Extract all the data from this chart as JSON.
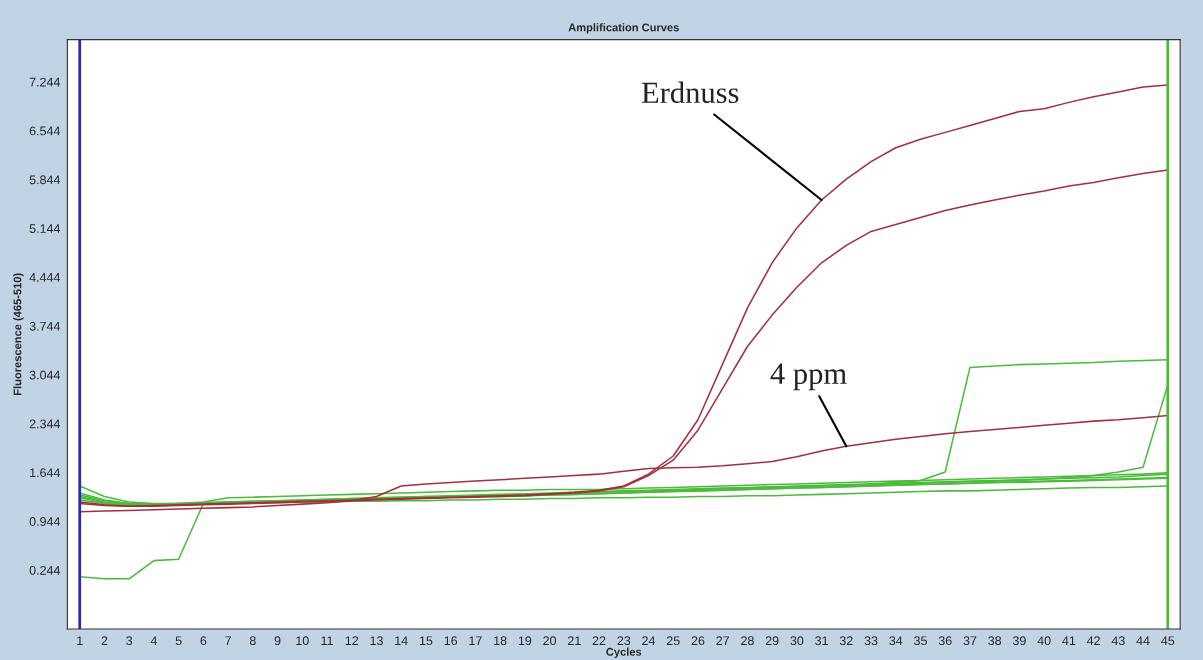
{
  "chart_data": {
    "type": "line",
    "title": "Amplification Curves",
    "xlabel": "Cycles",
    "ylabel": "Fluorescence (465-510)",
    "x": [
      1,
      2,
      3,
      4,
      5,
      6,
      7,
      8,
      9,
      10,
      11,
      12,
      13,
      14,
      15,
      16,
      17,
      18,
      19,
      20,
      21,
      22,
      23,
      24,
      25,
      26,
      27,
      28,
      29,
      30,
      31,
      32,
      33,
      34,
      35,
      36,
      37,
      38,
      39,
      40,
      41,
      42,
      43,
      44,
      45
    ],
    "xlim": [
      0.5,
      45.5
    ],
    "xticks": [
      1,
      2,
      3,
      4,
      5,
      6,
      7,
      8,
      9,
      10,
      11,
      12,
      13,
      14,
      15,
      16,
      17,
      18,
      19,
      20,
      21,
      22,
      23,
      24,
      25,
      26,
      27,
      28,
      29,
      30,
      31,
      32,
      33,
      34,
      35,
      36,
      37,
      38,
      39,
      40,
      41,
      42,
      43,
      44,
      45
    ],
    "ylim": [
      -0.6,
      7.85
    ],
    "yticks": [
      0.244,
      0.944,
      1.644,
      2.344,
      3.044,
      3.744,
      4.444,
      5.144,
      5.844,
      6.544,
      7.244
    ],
    "grid": false,
    "legend": false,
    "marker": "none",
    "line_style": "solid",
    "ref_lines": [
      {
        "axis": "x",
        "value": 1,
        "color": "#2a2ab4"
      },
      {
        "axis": "x",
        "value": 45,
        "color": "#4cbb3c"
      }
    ],
    "series": [
      {
        "color": "#4cbb3c",
        "values": [
          1.45,
          1.3,
          1.22,
          1.2,
          1.2,
          1.21,
          1.22,
          1.23,
          1.24,
          1.25,
          1.26,
          1.27,
          1.28,
          1.29,
          1.3,
          1.31,
          1.32,
          1.33,
          1.34,
          1.35,
          1.36,
          1.37,
          1.38,
          1.39,
          1.4,
          1.41,
          1.42,
          1.43,
          1.44,
          1.45,
          1.46,
          1.47,
          1.48,
          1.49,
          1.5,
          1.51,
          1.52,
          1.53,
          1.54,
          1.55,
          1.56,
          1.57,
          1.58,
          1.6,
          1.62
        ]
      },
      {
        "color": "#4cbb3c",
        "values": [
          1.35,
          1.25,
          1.2,
          1.18,
          1.2,
          1.22,
          1.28,
          1.29,
          1.3,
          1.31,
          1.32,
          1.33,
          1.34,
          1.35,
          1.36,
          1.37,
          1.38,
          1.39,
          1.39,
          1.4,
          1.4,
          1.4,
          1.41,
          1.42,
          1.43,
          1.44,
          1.45,
          1.46,
          1.47,
          1.48,
          1.49,
          1.5,
          1.51,
          1.52,
          1.53,
          1.54,
          1.55,
          1.56,
          1.57,
          1.58,
          1.59,
          1.6,
          1.61,
          1.62,
          1.64
        ]
      },
      {
        "color": "#4cbb3c",
        "values": [
          1.25,
          1.2,
          1.17,
          1.17,
          1.18,
          1.19,
          1.2,
          1.21,
          1.21,
          1.22,
          1.22,
          1.23,
          1.23,
          1.24,
          1.24,
          1.25,
          1.25,
          1.26,
          1.26,
          1.27,
          1.27,
          1.28,
          1.28,
          1.29,
          1.29,
          1.3,
          1.3,
          1.31,
          1.31,
          1.32,
          1.33,
          1.34,
          1.35,
          1.36,
          1.37,
          1.38,
          1.38,
          1.39,
          1.4,
          1.41,
          1.42,
          1.43,
          1.43,
          1.44,
          1.45
        ]
      },
      {
        "color": "#4cbb3c",
        "values": [
          1.3,
          1.22,
          1.19,
          1.18,
          1.19,
          1.2,
          1.21,
          1.22,
          1.23,
          1.24,
          1.25,
          1.26,
          1.27,
          1.28,
          1.29,
          1.3,
          1.3,
          1.31,
          1.31,
          1.32,
          1.33,
          1.34,
          1.35,
          1.36,
          1.37,
          1.38,
          1.39,
          1.4,
          1.41,
          1.42,
          1.43,
          1.44,
          1.45,
          1.46,
          1.47,
          1.48,
          1.49,
          1.5,
          1.51,
          1.52,
          1.53,
          1.54,
          1.55,
          1.56,
          1.57
        ]
      },
      {
        "color": "#4cbb3c",
        "values": [
          0.15,
          0.12,
          0.12,
          0.38,
          0.4,
          1.2,
          1.22,
          1.22,
          1.23,
          1.24,
          1.25,
          1.26,
          1.27,
          1.28,
          1.28,
          1.29,
          1.3,
          1.3,
          1.31,
          1.32,
          1.33,
          1.34,
          1.35,
          1.36,
          1.37,
          1.38,
          1.39,
          1.4,
          1.41,
          1.42,
          1.43,
          1.44,
          1.45,
          1.46,
          1.47,
          1.48,
          1.49,
          1.5,
          1.5,
          1.51,
          1.52,
          1.53,
          1.54,
          1.55,
          1.56
        ]
      },
      {
        "color": "#4cbb3c",
        "values": [
          1.32,
          1.24,
          1.2,
          1.19,
          1.2,
          1.21,
          1.22,
          1.23,
          1.24,
          1.25,
          1.26,
          1.27,
          1.28,
          1.29,
          1.3,
          1.3,
          1.31,
          1.32,
          1.33,
          1.34,
          1.35,
          1.36,
          1.37,
          1.38,
          1.39,
          1.4,
          1.41,
          1.42,
          1.43,
          1.44,
          1.45,
          1.46,
          1.48,
          1.5,
          1.53,
          1.65,
          3.15,
          3.17,
          3.19,
          3.2,
          3.21,
          3.22,
          3.24,
          3.25,
          3.26
        ]
      },
      {
        "color": "#4cbb3c",
        "values": [
          1.28,
          1.21,
          1.18,
          1.18,
          1.19,
          1.2,
          1.21,
          1.22,
          1.23,
          1.24,
          1.25,
          1.26,
          1.27,
          1.28,
          1.29,
          1.3,
          1.31,
          1.32,
          1.33,
          1.34,
          1.35,
          1.36,
          1.37,
          1.38,
          1.39,
          1.4,
          1.41,
          1.42,
          1.43,
          1.44,
          1.45,
          1.46,
          1.47,
          1.48,
          1.49,
          1.5,
          1.51,
          1.52,
          1.53,
          1.55,
          1.57,
          1.6,
          1.65,
          1.72,
          2.9
        ]
      },
      {
        "color": "#a3303c",
        "values": [
          1.2,
          1.17,
          1.16,
          1.17,
          1.18,
          1.19,
          1.2,
          1.21,
          1.22,
          1.23,
          1.24,
          1.25,
          1.26,
          1.27,
          1.28,
          1.29,
          1.3,
          1.31,
          1.32,
          1.34,
          1.36,
          1.39,
          1.45,
          1.62,
          1.88,
          2.4,
          3.2,
          4.0,
          4.65,
          5.15,
          5.55,
          5.85,
          6.1,
          6.3,
          6.42,
          6.52,
          6.62,
          6.72,
          6.82,
          6.86,
          6.95,
          7.03,
          7.1,
          7.17,
          7.2
        ]
      },
      {
        "color": "#a3303c",
        "values": [
          1.22,
          1.18,
          1.16,
          1.16,
          1.17,
          1.18,
          1.19,
          1.2,
          1.21,
          1.22,
          1.23,
          1.24,
          1.25,
          1.26,
          1.27,
          1.28,
          1.29,
          1.3,
          1.31,
          1.33,
          1.35,
          1.38,
          1.44,
          1.6,
          1.82,
          2.25,
          2.85,
          3.45,
          3.9,
          4.3,
          4.65,
          4.9,
          5.1,
          5.2,
          5.3,
          5.4,
          5.48,
          5.55,
          5.62,
          5.68,
          5.75,
          5.8,
          5.87,
          5.93,
          5.98
        ]
      },
      {
        "color": "#a3303c",
        "values": [
          1.08,
          1.09,
          1.1,
          1.11,
          1.12,
          1.13,
          1.14,
          1.15,
          1.17,
          1.19,
          1.21,
          1.24,
          1.3,
          1.45,
          1.48,
          1.5,
          1.52,
          1.54,
          1.56,
          1.58,
          1.6,
          1.62,
          1.66,
          1.7,
          1.71,
          1.72,
          1.74,
          1.77,
          1.8,
          1.87,
          1.95,
          2.02,
          2.07,
          2.12,
          2.16,
          2.2,
          2.23,
          2.26,
          2.29,
          2.32,
          2.35,
          2.38,
          2.4,
          2.43,
          2.46
        ]
      }
    ],
    "annotations": [
      {
        "text": "Erdnuss",
        "x": 31,
        "y": 5.55
      },
      {
        "text": "4 ppm",
        "x": 32,
        "y": 2.02
      }
    ]
  }
}
